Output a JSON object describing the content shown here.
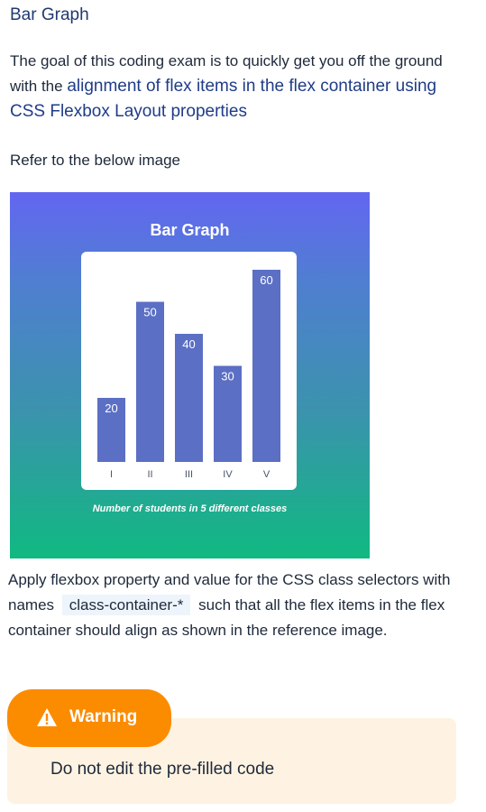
{
  "page": {
    "title": "Bar Graph",
    "intro_before": "The goal of this coding exam is to quickly get you off the ground with the ",
    "intro_highlight": "alignment of flex items in the flex container using CSS Flexbox Layout properties",
    "refer_text": "Refer to the below image"
  },
  "reference_image": {
    "title": "Bar Graph",
    "caption": "Number of students in 5 different classes"
  },
  "chart_data": {
    "type": "bar",
    "title": "Bar Graph",
    "subtitle": "Number of students in 5 different classes",
    "categories": [
      "I",
      "II",
      "III",
      "IV",
      "V"
    ],
    "values": [
      20,
      50,
      40,
      30,
      60
    ],
    "ylim": [
      0,
      60
    ],
    "bar_color": "#5b6fc4",
    "grid": false
  },
  "instructions": {
    "before_code": "Apply flexbox property and value for the CSS class selectors with names",
    "code": "class-container-*",
    "after_code": "such that all the flex items in the flex container should align as shown in the reference image."
  },
  "warning": {
    "label": "Warning",
    "icon": "warning-triangle-icon",
    "text": "Do not edit the pre-filled code",
    "tab_color": "#fb8c00",
    "box_color": "#fef3e2"
  }
}
